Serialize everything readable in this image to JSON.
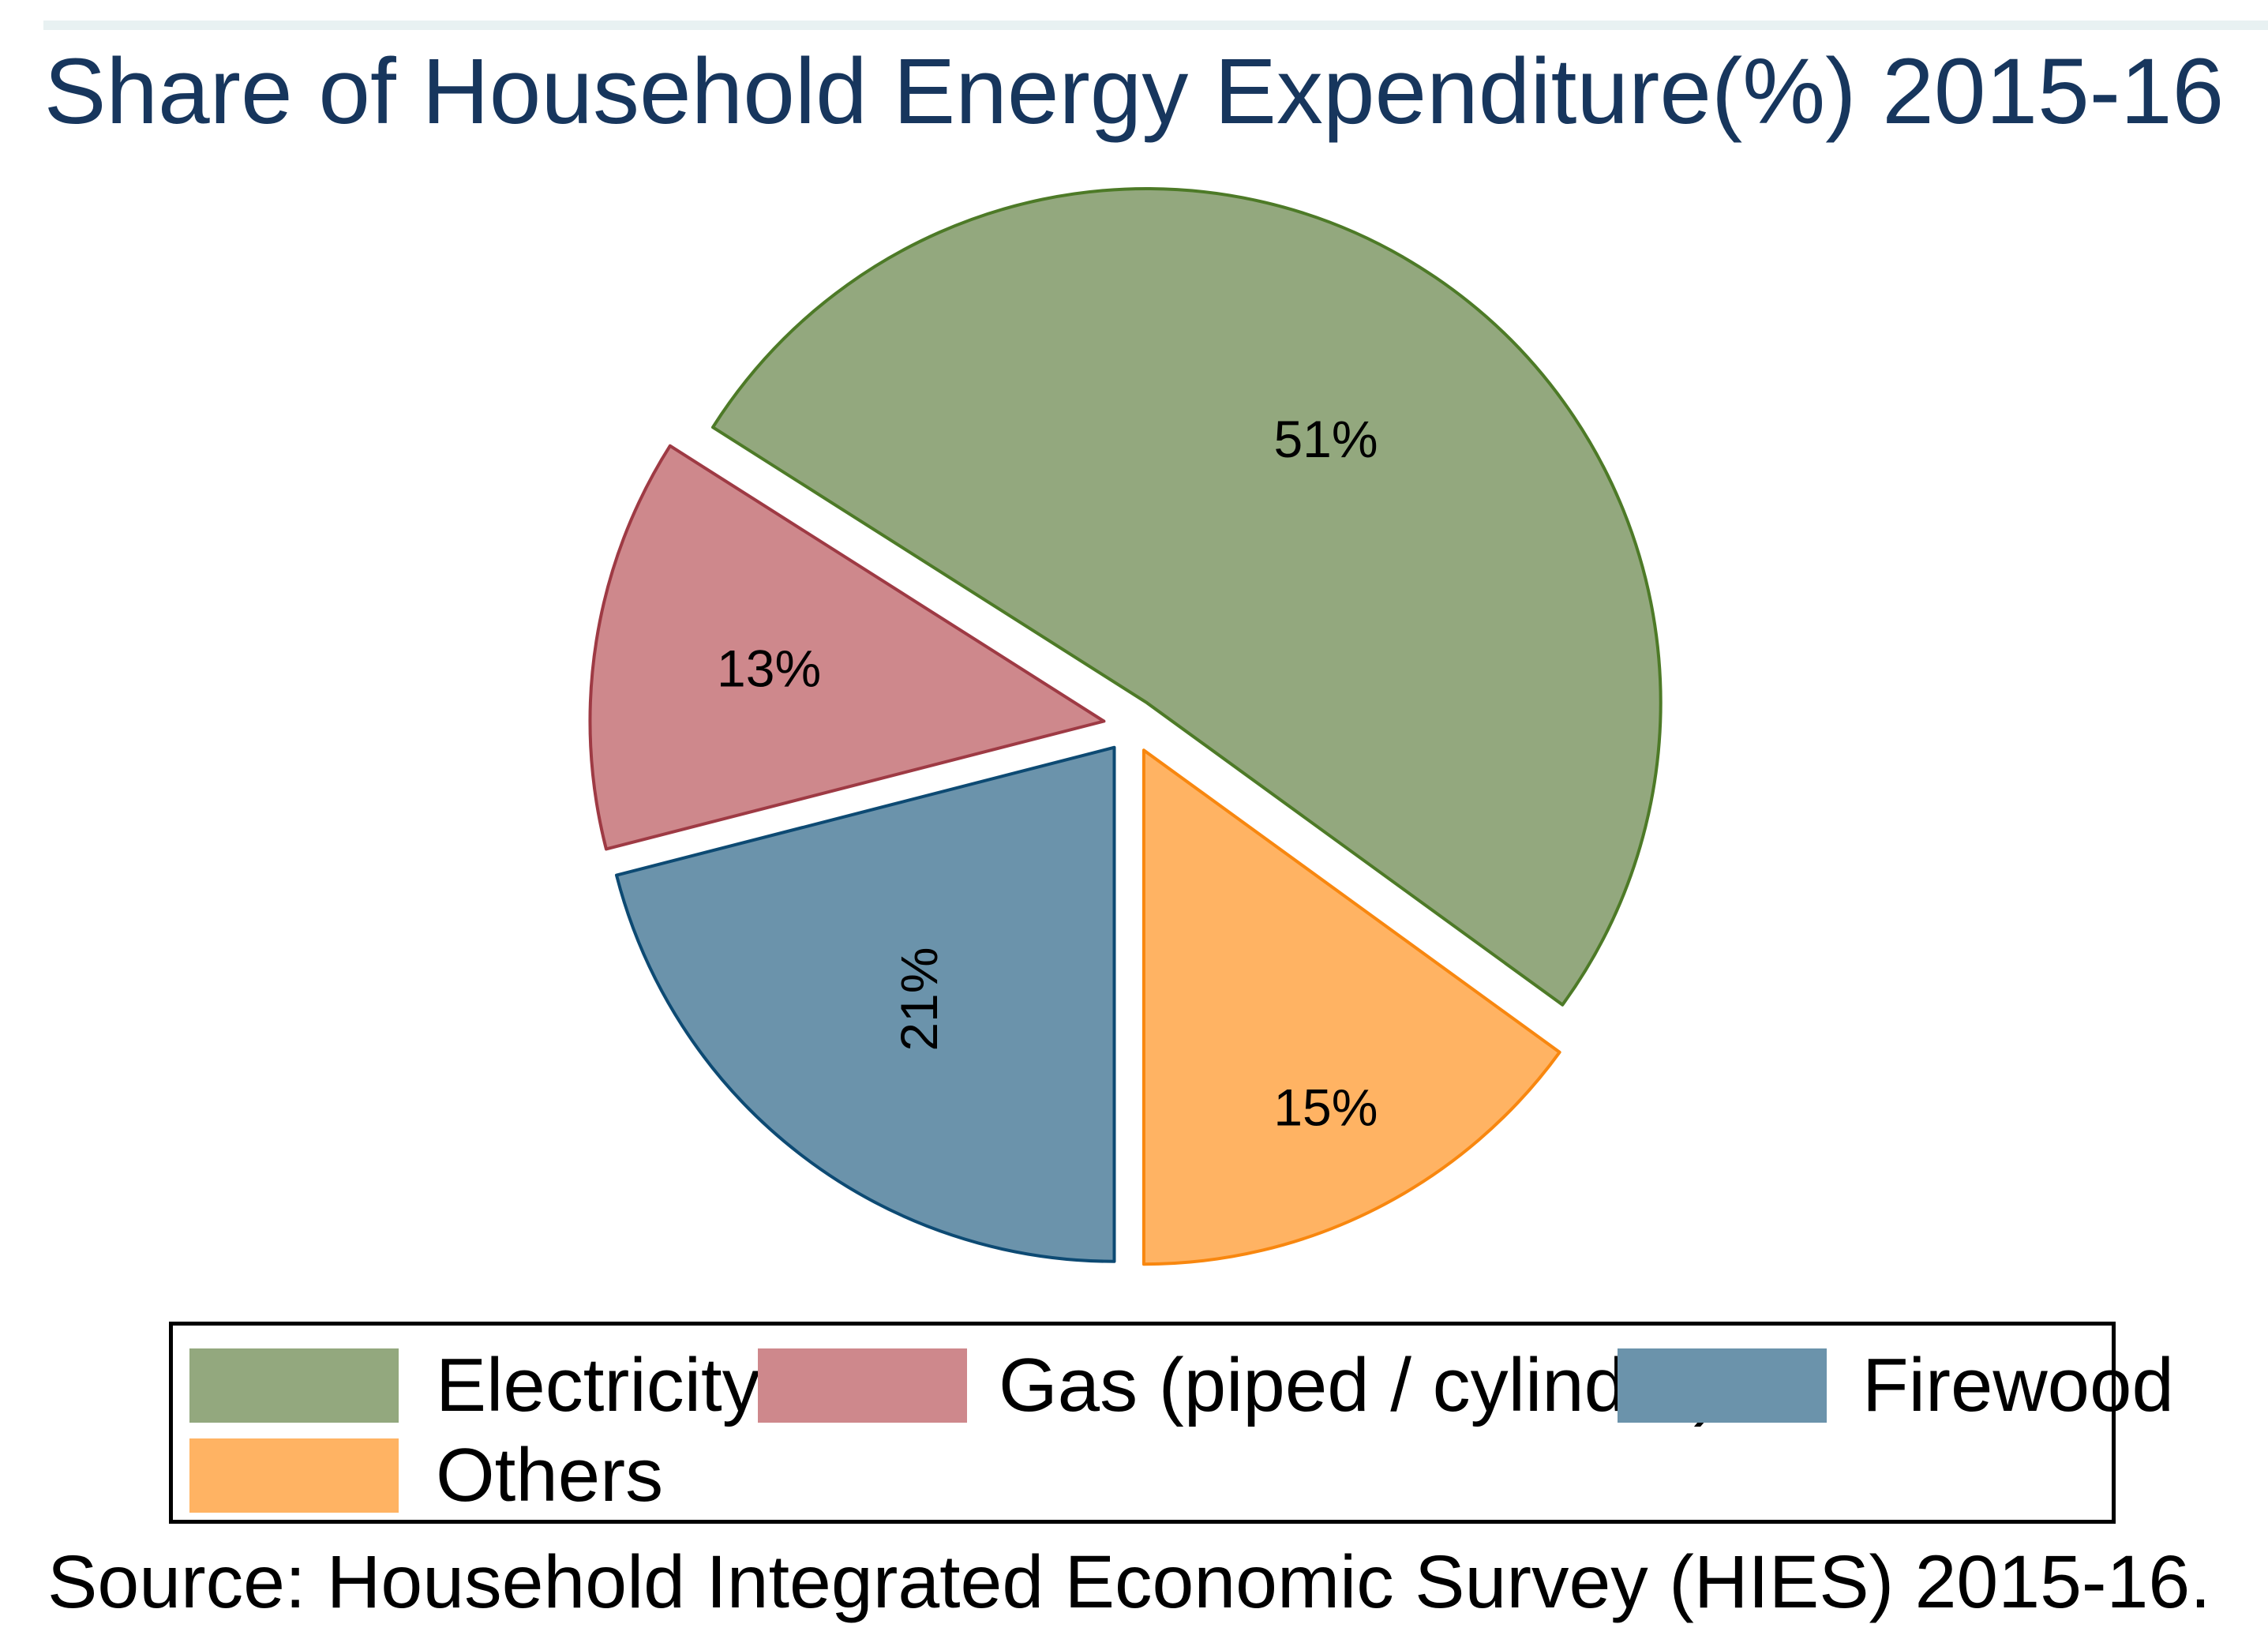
{
  "title": "Share of Household Energy Expenditure(%) 2015-16",
  "source_note": "Source: Household Integrated Economic Survey (HIES) 2015-16.",
  "chart_data": {
    "type": "pie",
    "title": "Share of Household Energy Expenditure(%) 2015-16",
    "categories": [
      "Electricity",
      "Gas (piped / cylinder)",
      "Firewood",
      "Others"
    ],
    "values": [
      51,
      13,
      21,
      15
    ],
    "unit": "percent of household energy expenditure",
    "slice_labels": [
      "51%",
      "13%",
      "21%",
      "15%"
    ],
    "slice_colors": [
      "#93a87e",
      "#ce888c",
      "#6b93ab",
      "#ffb363"
    ],
    "slice_outline_colors": [
      "#4d7a27",
      "#9e3a44",
      "#0d4a73",
      "#f8870f"
    ],
    "start_angle_deg": 324,
    "direction": "ccw",
    "exploded_slices": true,
    "legend_position": "bottom",
    "legend_entries": [
      "Electricity",
      "Gas (piped / cylinder)",
      "Firewood",
      "Others"
    ],
    "source": "Source: Household Integrated Economic Survey (HIES) 2015-16."
  },
  "legend": {
    "items": [
      {
        "id": "electricity",
        "label": "Electricity",
        "color": "#93a87e"
      },
      {
        "id": "gas",
        "label": "Gas (piped / cylinder)",
        "color": "#ce888c"
      },
      {
        "id": "firewood",
        "label": "Firewood",
        "color": "#6b93ab"
      },
      {
        "id": "others",
        "label": "Others",
        "color": "#ffb363"
      }
    ]
  },
  "styles": {
    "title_color": "#17365d",
    "text_color": "#000000",
    "top_strip_color": "#e8f1f2",
    "legend_border_color": "#000000",
    "background_color": "#ffffff"
  }
}
